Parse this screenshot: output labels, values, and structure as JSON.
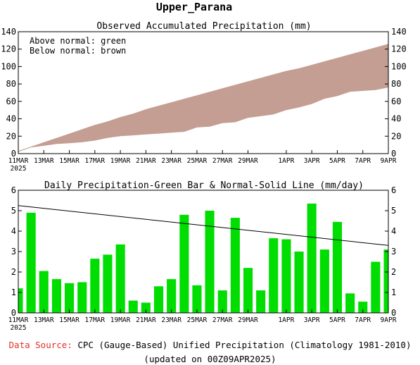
{
  "page_title": "Upper_Parana",
  "footer": {
    "source_label": "Data Source:",
    "source_text": "CPC (Gauge-Based) Unified Precipitation (Climatology 1981-2010)",
    "updated": "(updated on 00Z09APR2025)"
  },
  "colors": {
    "accum_band": "#c49e92",
    "daily_bar": "#00dd00",
    "axes": "#000000"
  },
  "chart_data": [
    {
      "type": "area",
      "title": "Observed Accumulated Precipitation (mm)",
      "annotations": [
        "Above normal: green",
        "Below normal: brown"
      ],
      "xlabel": "",
      "ylabel": "",
      "ylim": [
        0,
        140
      ],
      "yticks": [
        0,
        20,
        40,
        60,
        80,
        100,
        120,
        140
      ],
      "xlim": [
        0,
        29
      ],
      "xticks": [
        {
          "x": 0,
          "label": "11MAR",
          "sub": "2025"
        },
        {
          "x": 2,
          "label": "13MAR"
        },
        {
          "x": 4,
          "label": "15MAR"
        },
        {
          "x": 6,
          "label": "17MAR"
        },
        {
          "x": 8,
          "label": "19MAR"
        },
        {
          "x": 10,
          "label": "21MAR"
        },
        {
          "x": 12,
          "label": "23MAR"
        },
        {
          "x": 14,
          "label": "25MAR"
        },
        {
          "x": 16,
          "label": "27MAR"
        },
        {
          "x": 18,
          "label": "29MAR"
        },
        {
          "x": 21,
          "label": "1APR"
        },
        {
          "x": 23,
          "label": "3APR"
        },
        {
          "x": 25,
          "label": "5APR"
        },
        {
          "x": 27,
          "label": "7APR"
        },
        {
          "x": 29,
          "label": "9APR"
        }
      ],
      "x": [
        0,
        1,
        2,
        3,
        4,
        5,
        6,
        7,
        8,
        9,
        10,
        11,
        12,
        13,
        14,
        15,
        16,
        17,
        18,
        19,
        20,
        21,
        22,
        23,
        24,
        25,
        26,
        27,
        28,
        29
      ],
      "series": [
        {
          "role": "observed",
          "values": [
            2,
            7,
            9,
            11,
            12,
            13,
            15,
            18,
            20,
            21,
            22,
            23,
            24,
            25,
            30,
            31,
            35,
            36,
            41,
            43,
            45,
            50,
            53,
            57,
            63,
            66,
            71,
            72,
            73,
            76
          ]
        },
        {
          "role": "normal",
          "values": [
            3,
            8,
            13,
            18,
            23,
            28,
            33,
            37,
            42,
            46,
            51,
            55,
            59,
            63,
            67,
            71,
            75,
            79,
            83,
            87,
            91,
            95,
            98,
            102,
            106,
            110,
            114,
            118,
            122,
            126
          ]
        }
      ]
    },
    {
      "type": "bar",
      "title": "Daily Precipitation-Green Bar & Normal-Solid Line (mm/day)",
      "xlabel": "",
      "ylabel": "",
      "ylim": [
        0,
        6
      ],
      "yticks": [
        0,
        1,
        2,
        3,
        4,
        5,
        6
      ],
      "xlim": [
        0,
        29
      ],
      "xticks": [
        {
          "x": 0,
          "label": "11MAR",
          "sub": "2025"
        },
        {
          "x": 2,
          "label": "13MAR"
        },
        {
          "x": 4,
          "label": "15MAR"
        },
        {
          "x": 6,
          "label": "17MAR"
        },
        {
          "x": 8,
          "label": "19MAR"
        },
        {
          "x": 10,
          "label": "21MAR"
        },
        {
          "x": 12,
          "label": "23MAR"
        },
        {
          "x": 14,
          "label": "25MAR"
        },
        {
          "x": 16,
          "label": "27MAR"
        },
        {
          "x": 18,
          "label": "29MAR"
        },
        {
          "x": 21,
          "label": "1APR"
        },
        {
          "x": 23,
          "label": "3APR"
        },
        {
          "x": 25,
          "label": "5APR"
        },
        {
          "x": 27,
          "label": "7APR"
        },
        {
          "x": 29,
          "label": "9APR"
        }
      ],
      "x": [
        0,
        1,
        2,
        3,
        4,
        5,
        6,
        7,
        8,
        9,
        10,
        11,
        12,
        13,
        14,
        15,
        16,
        17,
        18,
        19,
        20,
        21,
        22,
        23,
        24,
        25,
        26,
        27,
        28,
        29
      ],
      "values": [
        1.2,
        4.9,
        2.05,
        1.65,
        1.45,
        1.5,
        2.65,
        2.85,
        3.35,
        0.6,
        0.5,
        1.3,
        1.65,
        4.8,
        1.35,
        5.0,
        1.1,
        4.65,
        2.2,
        1.1,
        3.65,
        3.6,
        3.0,
        5.35,
        3.1,
        4.45,
        0.95,
        0.55,
        2.5,
        3.1
      ],
      "normal_line": {
        "x": [
          0,
          29
        ],
        "values": [
          5.25,
          3.3
        ]
      }
    }
  ]
}
